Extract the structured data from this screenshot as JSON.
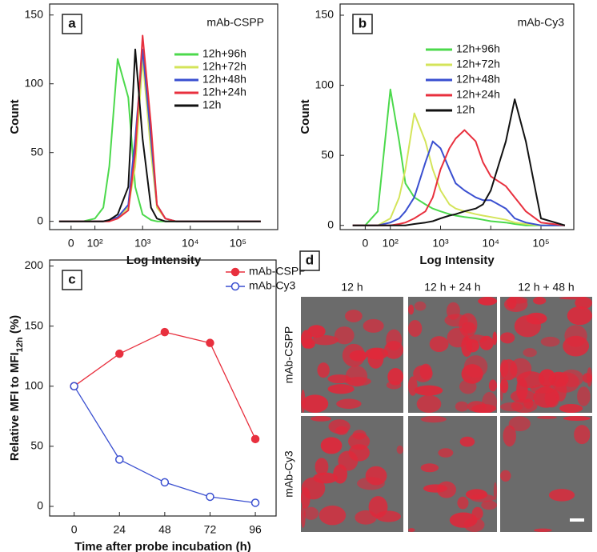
{
  "chart_data": [
    {
      "type": "line",
      "panel_label": "a",
      "annotation": "mAb-CSPP",
      "xscale": "biexponential",
      "x_label": "Log Intensity",
      "y_label": "Count",
      "x": [
        -50,
        0,
        50,
        100,
        150,
        200,
        300,
        500,
        700,
        1000,
        1500,
        2000,
        3000,
        5000,
        7000,
        10000,
        20000,
        30000,
        50000,
        100000,
        300000
      ],
      "series": [
        {
          "name": "12h+96h",
          "color": "#4cd94c",
          "values": [
            0,
            0,
            0,
            2,
            10,
            40,
            118,
            90,
            25,
            5,
            1,
            0,
            0,
            0,
            0,
            0,
            0,
            0,
            0,
            0,
            0
          ]
        },
        {
          "name": "12h+72h",
          "color": "#d4e45a",
          "values": [
            0,
            0,
            0,
            0,
            0,
            1,
            3,
            10,
            40,
            118,
            50,
            10,
            2,
            0,
            0,
            0,
            0,
            0,
            0,
            0,
            0
          ]
        },
        {
          "name": "12h+48h",
          "color": "#3a4fd0",
          "values": [
            0,
            0,
            0,
            0,
            0,
            1,
            3,
            12,
            60,
            125,
            60,
            12,
            2,
            0,
            0,
            0,
            0,
            0,
            0,
            0,
            0
          ]
        },
        {
          "name": "12h+24h",
          "color": "#e8303e",
          "values": [
            0,
            0,
            0,
            0,
            0,
            0,
            2,
            8,
            50,
            135,
            70,
            12,
            2,
            0,
            0,
            0,
            0,
            0,
            0,
            0,
            0
          ]
        },
        {
          "name": "12h",
          "color": "#111111",
          "values": [
            0,
            0,
            0,
            0,
            0,
            1,
            5,
            25,
            125,
            60,
            10,
            2,
            0,
            0,
            0,
            0,
            0,
            0,
            0,
            0,
            0
          ]
        }
      ],
      "xlim": [
        -90,
        680000
      ],
      "xticks": [
        0,
        {
          "value": 100,
          "label": "10²"
        },
        {
          "value": 1000,
          "label": "10³"
        },
        {
          "value": 10000,
          "label": "10⁴"
        },
        {
          "value": 100000,
          "label": "10⁵"
        }
      ],
      "ylim": [
        -6,
        158
      ],
      "yticks": [
        0,
        50,
        100,
        150
      ]
    },
    {
      "type": "line",
      "panel_label": "b",
      "annotation": "mAb-Cy3",
      "xscale": "biexponential",
      "x_label": "Log Intensity",
      "y_label": "Count",
      "x": [
        -50,
        0,
        50,
        100,
        150,
        200,
        300,
        500,
        700,
        1000,
        1500,
        2000,
        3000,
        5000,
        7000,
        10000,
        20000,
        30000,
        50000,
        100000,
        300000
      ],
      "series": [
        {
          "name": "12h+96h",
          "color": "#4cd94c",
          "values": [
            0,
            0,
            10,
            97,
            60,
            30,
            20,
            15,
            12,
            10,
            8,
            7,
            6,
            5,
            4,
            3,
            2,
            1,
            0,
            0,
            0
          ]
        },
        {
          "name": "12h+72h",
          "color": "#d4e45a",
          "values": [
            0,
            0,
            0,
            5,
            20,
            40,
            80,
            60,
            40,
            25,
            15,
            12,
            10,
            8,
            7,
            6,
            4,
            2,
            1,
            0,
            0
          ]
        },
        {
          "name": "12h+48h",
          "color": "#3a4fd0",
          "values": [
            0,
            0,
            0,
            2,
            5,
            10,
            20,
            45,
            60,
            55,
            40,
            30,
            25,
            20,
            18,
            18,
            12,
            5,
            2,
            0,
            0
          ]
        },
        {
          "name": "12h+24h",
          "color": "#e8303e",
          "values": [
            0,
            0,
            0,
            0,
            1,
            2,
            5,
            10,
            20,
            40,
            55,
            62,
            68,
            60,
            45,
            35,
            28,
            20,
            10,
            2,
            0
          ]
        },
        {
          "name": "12h",
          "color": "#111111",
          "values": [
            0,
            0,
            0,
            0,
            0,
            0,
            1,
            2,
            3,
            5,
            7,
            8,
            10,
            12,
            15,
            25,
            60,
            90,
            60,
            5,
            0
          ]
        }
      ],
      "xlim": [
        -100,
        450000
      ],
      "xticks": [
        0,
        {
          "value": 100,
          "label": "10²"
        },
        {
          "value": 1000,
          "label": "10³"
        },
        {
          "value": 10000,
          "label": "10⁴"
        },
        {
          "value": 100000,
          "label": "10⁵"
        }
      ],
      "ylim": [
        -3,
        158
      ],
      "yticks": [
        0,
        50,
        100,
        150
      ]
    },
    {
      "type": "line",
      "panel_label": "c",
      "xscale": "linear",
      "x_label": "Time after probe incubation (h)",
      "y_label": {
        "text": "Relative MFI to MFI",
        "subscript": "12h",
        "suffix": " (%)"
      },
      "x": [
        0,
        24,
        48,
        72,
        96
      ],
      "series": [
        {
          "name": "mAb-CSPP",
          "color": "#e8303e",
          "marker": "filled",
          "values": [
            100,
            127,
            145,
            136,
            56
          ]
        },
        {
          "name": "mAb-Cy3",
          "color": "#3a4fd0",
          "marker": "open",
          "values": [
            100,
            39,
            20,
            8,
            3
          ]
        }
      ],
      "xlim": [
        -13,
        107
      ],
      "xticks": [
        0,
        24,
        48,
        72,
        96
      ],
      "ylim": [
        -8,
        205
      ],
      "yticks": [
        0,
        50,
        100,
        150,
        200
      ]
    }
  ],
  "image_panel": {
    "label": "d",
    "columns": [
      "12 h",
      "12 h + 24 h",
      "12 h + 48 h"
    ],
    "rows": [
      "mAb-CSPP",
      "mAb-Cy3"
    ]
  }
}
